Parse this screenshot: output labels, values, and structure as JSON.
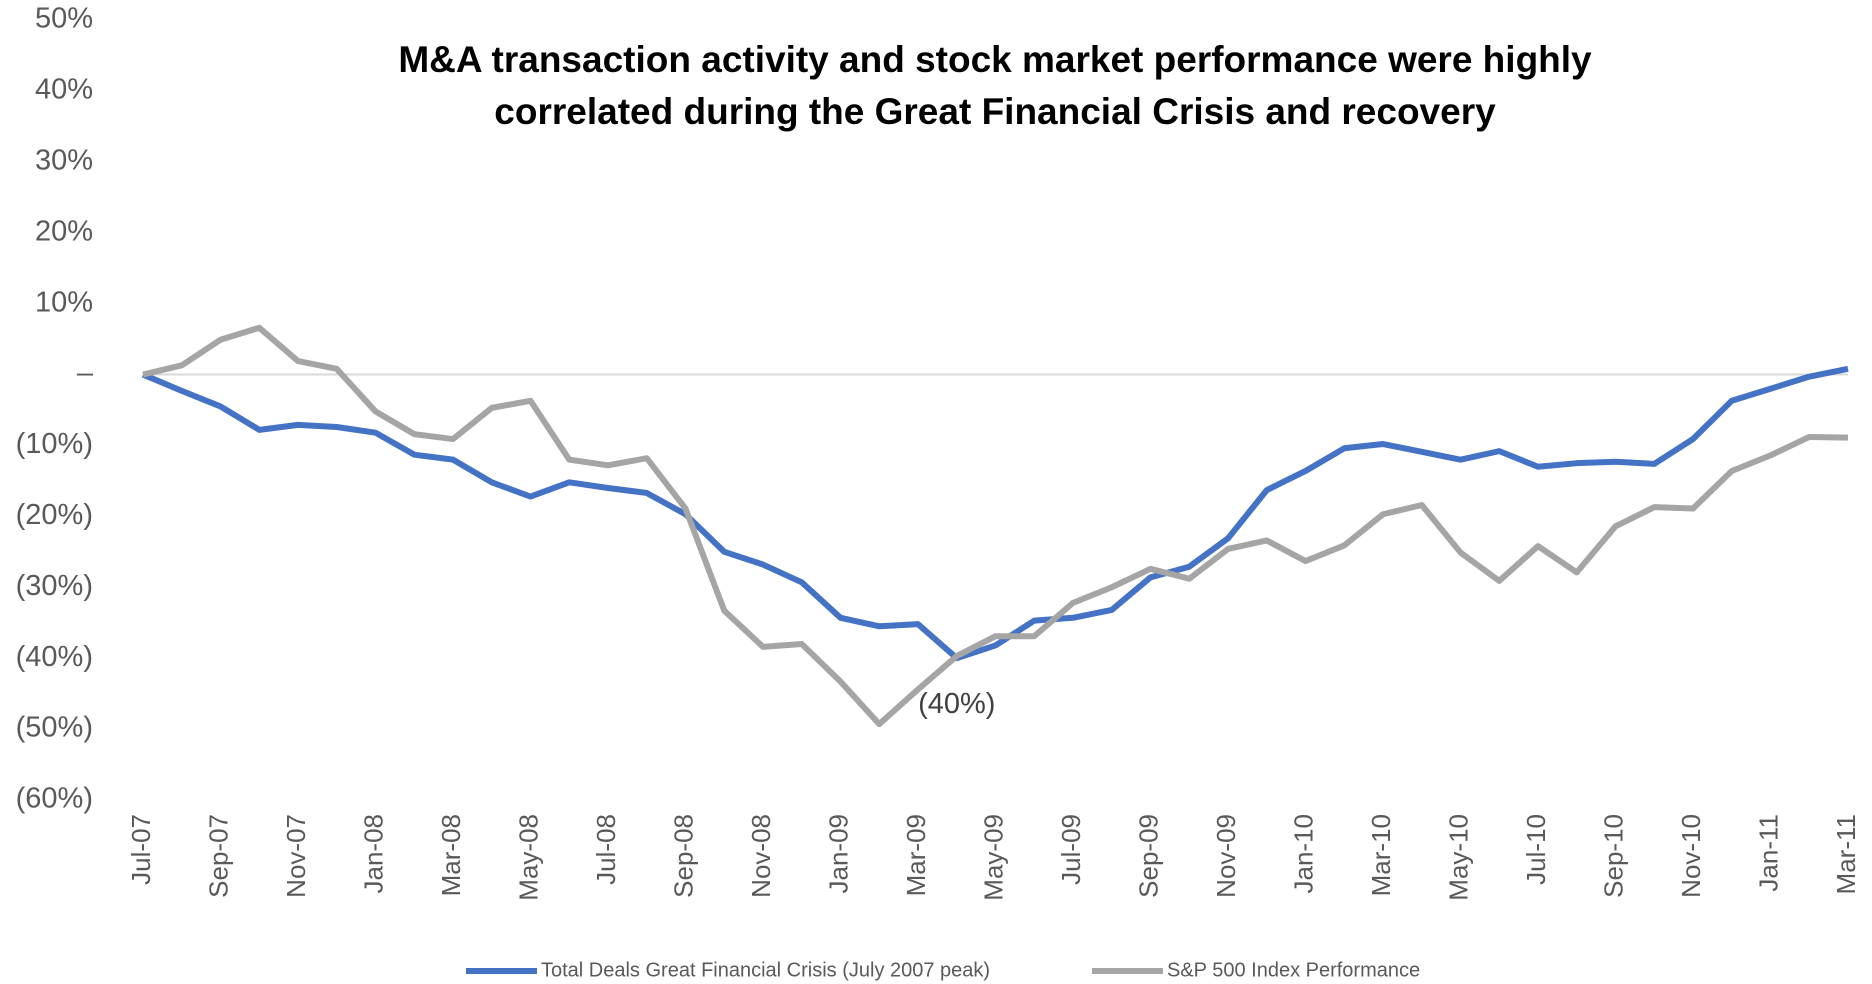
{
  "chart_data": {
    "type": "line",
    "title": [
      "M&A transaction activity and stock market performance were highly",
      "correlated during the Great Financial Crisis and recovery"
    ],
    "categories": [
      "Jul-07",
      null,
      "Sep-07",
      null,
      "Nov-07",
      null,
      "Jan-08",
      null,
      "Mar-08",
      null,
      "May-08",
      null,
      "Jul-08",
      null,
      "Sep-08",
      null,
      "Nov-08",
      null,
      "Jan-09",
      null,
      "Mar-09",
      null,
      "May-09",
      null,
      "Jul-09",
      null,
      "Sep-09",
      null,
      "Nov-09",
      null,
      "Jan-10",
      null,
      "Mar-10",
      null,
      "May-10",
      null,
      "Jul-10",
      null,
      "Sep-10",
      null,
      "Nov-10",
      null,
      "Jan-11",
      null,
      "Mar-11"
    ],
    "series": [
      {
        "name": "Total Deals Great Financial Crisis (July 2007 peak)",
        "color": "#4472c4",
        "values": [
          0,
          -2.3,
          -4.5,
          -7.8,
          -7.1,
          -7.4,
          -8.2,
          -11.3,
          -12,
          -15.2,
          -17.2,
          -15.2,
          -16,
          -16.7,
          -19.7,
          -25,
          -26.8,
          -29.3,
          -34.3,
          -35.5,
          -35.2,
          -40,
          -38.2,
          -34.7,
          -34.3,
          -33.2,
          -28.6,
          -27.1,
          -23.1,
          -16.3,
          -13.6,
          -10.4,
          -9.8,
          -10.9,
          -12,
          -10.8,
          -13,
          -12.5,
          -12.3,
          -12.6,
          -9.1,
          -3.7,
          -2,
          -0.3,
          0.8
        ],
        "value_labels": [
          null,
          null,
          null,
          null,
          null,
          null,
          null,
          null,
          null,
          null,
          null,
          null,
          null,
          null,
          null,
          null,
          null,
          null,
          null,
          null,
          null,
          "(40%)",
          null,
          null,
          null,
          null,
          null,
          null,
          null,
          null,
          null,
          null,
          null,
          null,
          null,
          null,
          null,
          null,
          null,
          null,
          null,
          null,
          null,
          null,
          null
        ]
      },
      {
        "name": "S&P 500 Index Performance",
        "color": "#a5a5a5",
        "values": [
          0,
          1.3,
          4.9,
          6.6,
          1.9,
          0.8,
          -5.2,
          -8.4,
          -9.1,
          -4.7,
          -3.7,
          -12,
          -12.8,
          -11.8,
          -18.9,
          -33.3,
          -38.4,
          -38,
          -43.3,
          -49.3,
          -44.4,
          -39.7,
          -36.9,
          -36.9,
          -32.2,
          -30,
          -27.4,
          -28.8,
          -24.6,
          -23.4,
          -26.3,
          -24.1,
          -19.7,
          -18.4,
          -25.1,
          -29.1,
          -24.2,
          -27.9,
          -21.4,
          -18.7,
          -18.9,
          -13.6,
          -11.4,
          -8.8,
          -8.9
        ]
      }
    ],
    "ylim": [
      -60,
      50
    ],
    "yticks": [
      {
        "value": 50,
        "label": "50%"
      },
      {
        "value": 40,
        "label": "40%"
      },
      {
        "value": 30,
        "label": "30%"
      },
      {
        "value": 20,
        "label": "20%"
      },
      {
        "value": 10,
        "label": "10%"
      },
      {
        "value": 0,
        "label": "–"
      },
      {
        "value": -10,
        "label": "(10%)"
      },
      {
        "value": -20,
        "label": "(20%)"
      },
      {
        "value": -30,
        "label": "(30%)"
      },
      {
        "value": -40,
        "label": "(40%)"
      },
      {
        "value": -50,
        "label": "(50%)"
      },
      {
        "value": -60,
        "label": "(60%)"
      }
    ],
    "grid": false,
    "legend": "bottom"
  }
}
